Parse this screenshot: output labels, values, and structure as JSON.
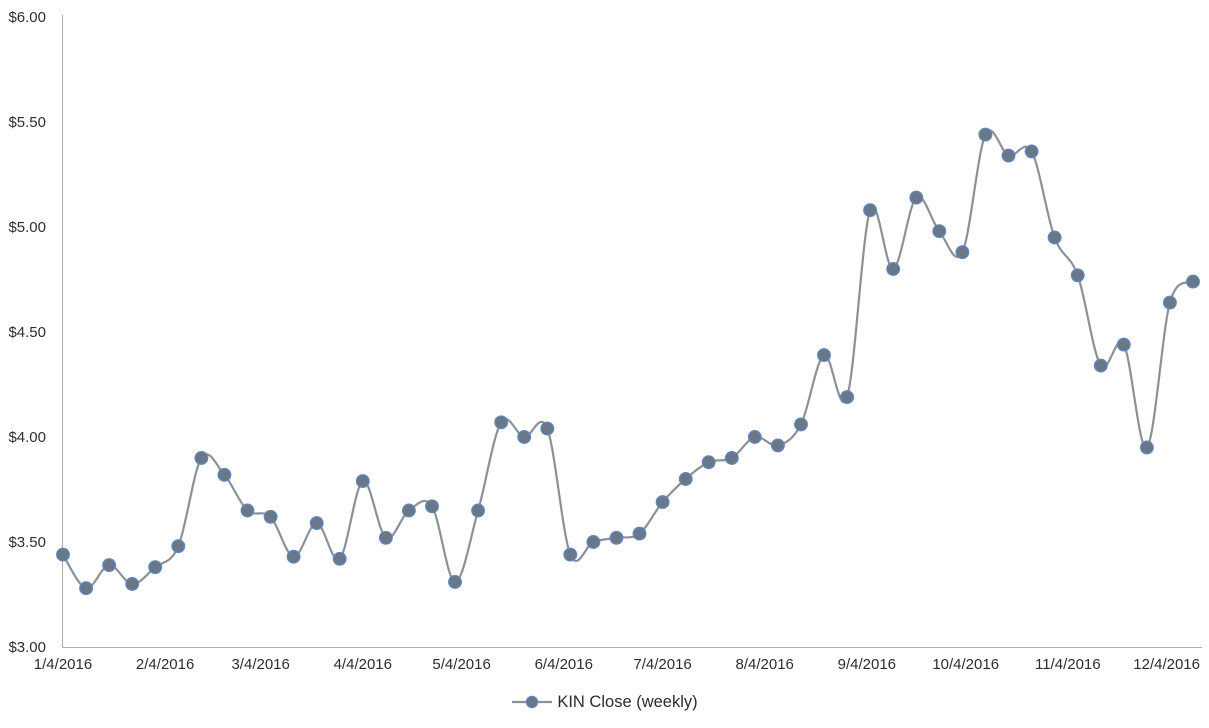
{
  "page": {
    "background": "#ffffff"
  },
  "chart_data": {
    "type": "line",
    "title": "",
    "xlabel": "",
    "ylabel": "",
    "grid": false,
    "smoothed_line": true,
    "ylim": [
      3.0,
      6.0
    ],
    "ytick_step": 0.5,
    "ytick_labels": [
      "$6.00",
      "$5.50",
      "$5.00",
      "$4.50",
      "$4.00",
      "$3.50",
      "$3.00"
    ],
    "xtick_labels": [
      "1/4/2016",
      "2/4/2016",
      "3/4/2016",
      "4/4/2016",
      "5/4/2016",
      "6/4/2016",
      "7/4/2016",
      "8/4/2016",
      "9/4/2016",
      "10/4/2016",
      "11/4/2016",
      "12/4/2016"
    ],
    "series": [
      {
        "name": "KIN Close (weekly)",
        "dates": [
          "1/4/2016",
          "1/11/2016",
          "1/18/2016",
          "1/25/2016",
          "2/1/2016",
          "2/8/2016",
          "2/15/2016",
          "2/22/2016",
          "2/29/2016",
          "3/7/2016",
          "3/14/2016",
          "3/21/2016",
          "3/28/2016",
          "4/4/2016",
          "4/11/2016",
          "4/18/2016",
          "4/25/2016",
          "5/2/2016",
          "5/9/2016",
          "5/16/2016",
          "5/23/2016",
          "5/30/2016",
          "6/6/2016",
          "6/13/2016",
          "6/20/2016",
          "6/27/2016",
          "7/4/2016",
          "7/11/2016",
          "7/18/2016",
          "7/25/2016",
          "8/1/2016",
          "8/8/2016",
          "8/15/2016",
          "8/22/2016",
          "8/29/2016",
          "9/5/2016",
          "9/12/2016",
          "9/19/2016",
          "9/26/2016",
          "10/3/2016",
          "10/10/2016",
          "10/17/2016",
          "10/24/2016",
          "10/31/2016",
          "11/7/2016",
          "11/14/2016",
          "11/21/2016",
          "11/28/2016",
          "12/5/2016",
          "12/12/2016"
        ],
        "values": [
          3.44,
          3.28,
          3.39,
          3.3,
          3.38,
          3.48,
          3.9,
          3.82,
          3.65,
          3.62,
          3.43,
          3.59,
          3.42,
          3.79,
          3.52,
          3.65,
          3.67,
          3.31,
          3.65,
          4.07,
          4.0,
          4.04,
          3.44,
          3.5,
          3.52,
          3.54,
          3.69,
          3.8,
          3.88,
          3.9,
          4.0,
          3.96,
          4.06,
          4.39,
          4.19,
          5.08,
          4.8,
          5.14,
          4.98,
          4.88,
          5.44,
          5.34,
          5.36,
          4.95,
          4.77,
          4.34,
          4.44,
          3.95,
          4.64,
          4.74
        ]
      }
    ],
    "legend": {
      "position": "bottom",
      "label": "KIN Close (weekly)"
    },
    "colors": {
      "line": "#8c9197",
      "marker_fill": "#6a7787",
      "marker_stroke": "#5c87c0",
      "axis_line": "#aeaeae",
      "tick_text": "#2e2e2e",
      "legend_text": "#2b2b2b",
      "background": "#ffffff"
    }
  }
}
